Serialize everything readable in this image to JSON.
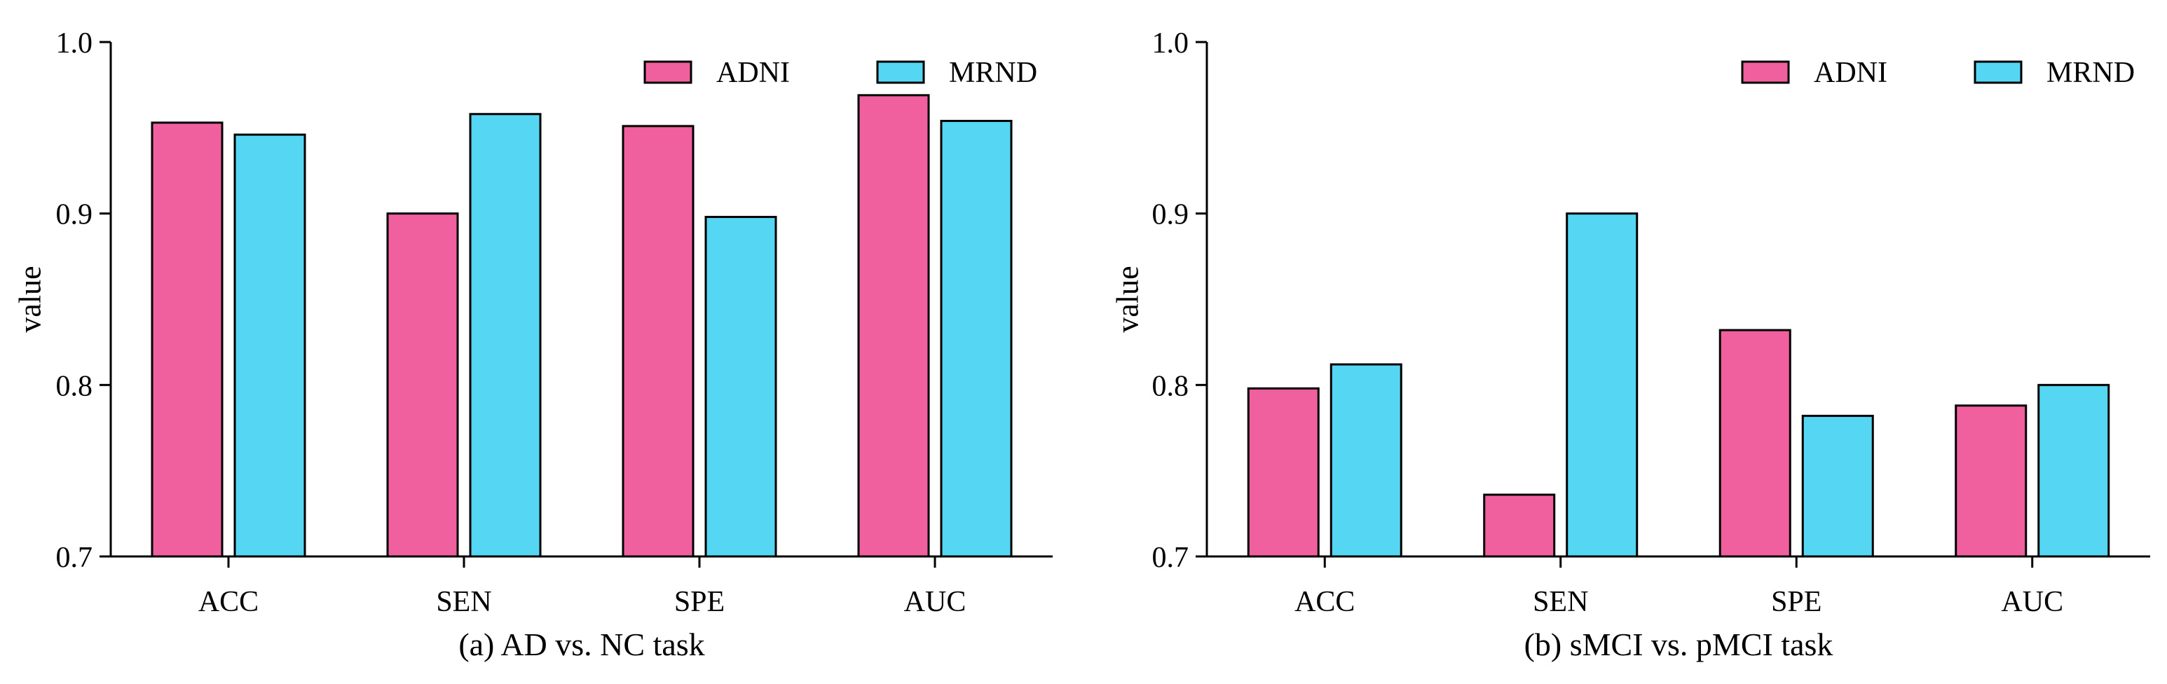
{
  "colors": {
    "adni": "#F0609E",
    "mrnd": "#55D6F2",
    "stroke": "#000000"
  },
  "chart_data": [
    {
      "type": "bar",
      "caption": "(a) AD vs. NC task",
      "ylabel": "value",
      "xlabel": "",
      "ylim": [
        0.7,
        1.0
      ],
      "yticks": [
        "0.7",
        "0.8",
        "0.9",
        "1.0"
      ],
      "categories": [
        "ACC",
        "SEN",
        "SPE",
        "AUC"
      ],
      "legend_position": "top-right",
      "series": [
        {
          "name": "ADNI",
          "values": [
            0.953,
            0.9,
            0.951,
            0.969
          ]
        },
        {
          "name": "MRND",
          "values": [
            0.946,
            0.958,
            0.898,
            0.954
          ]
        }
      ]
    },
    {
      "type": "bar",
      "caption": "(b) sMCI vs. pMCI task",
      "ylabel": "value",
      "xlabel": "",
      "ylim": [
        0.7,
        1.0
      ],
      "yticks": [
        "0.7",
        "0.8",
        "0.9",
        "1.0"
      ],
      "categories": [
        "ACC",
        "SEN",
        "SPE",
        "AUC"
      ],
      "legend_position": "top-right",
      "series": [
        {
          "name": "ADNI",
          "values": [
            0.798,
            0.736,
            0.832,
            0.788
          ]
        },
        {
          "name": "MRND",
          "values": [
            0.812,
            0.9,
            0.782,
            0.8
          ]
        }
      ]
    }
  ]
}
